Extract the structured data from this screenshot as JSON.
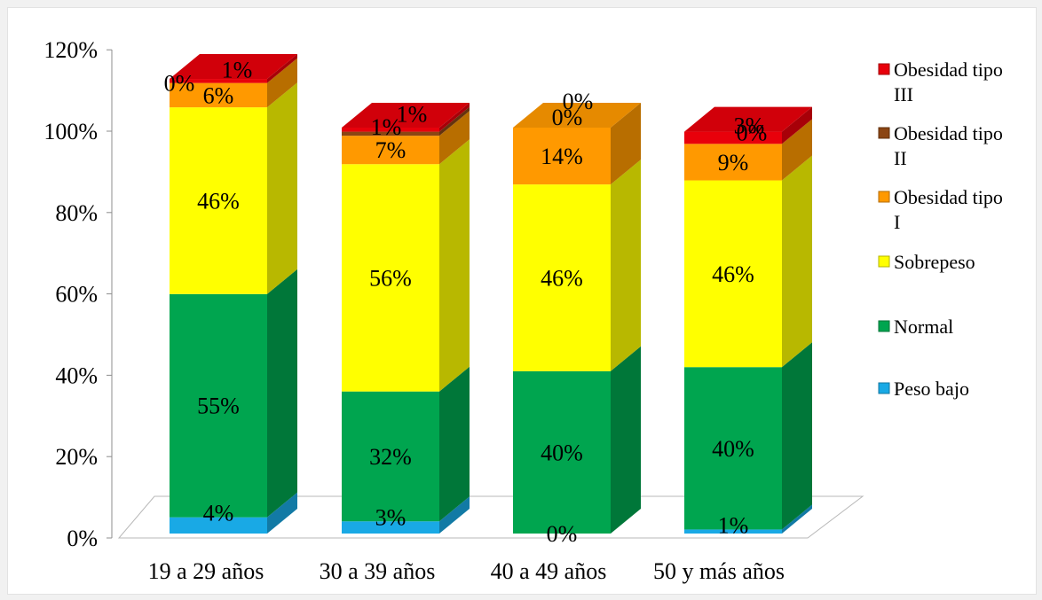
{
  "chart_data": {
    "type": "bar",
    "stacked": true,
    "three_d": true,
    "categories": [
      "19 a 29 años",
      "30 a 39 años",
      "40 a 49 años",
      "50 y más años"
    ],
    "ylim": [
      0,
      120
    ],
    "yticks": [
      "0%",
      "20%",
      "40%",
      "60%",
      "80%",
      "100%",
      "120%"
    ],
    "legend_position": "right",
    "series": [
      {
        "name": "Peso bajo",
        "color": "#19a9e5",
        "values": [
          4,
          3,
          0,
          1
        ],
        "labels": [
          "4%",
          "3%",
          "0%",
          "1%"
        ]
      },
      {
        "name": "Normal",
        "color": "#00a54f",
        "values": [
          55,
          32,
          40,
          40
        ],
        "labels": [
          "55%",
          "32%",
          "40%",
          "40%"
        ]
      },
      {
        "name": "Sobrepeso",
        "color": "#ffff00",
        "values": [
          46,
          56,
          46,
          46
        ],
        "labels": [
          "46%",
          "56%",
          "46%",
          "46%"
        ]
      },
      {
        "name": "Obesidad tipo I",
        "color": "#ff9900",
        "values": [
          6,
          7,
          14,
          9
        ],
        "labels": [
          "6%",
          "7%",
          "14%",
          "9%"
        ]
      },
      {
        "name": "Obesidad tipo II",
        "color": "#8b4513",
        "values": [
          0,
          1,
          0,
          0
        ],
        "labels": [
          "0%",
          "1%",
          "0%",
          "0%"
        ]
      },
      {
        "name": "Obesidad tipo III",
        "color": "#e8000b",
        "values": [
          1,
          1,
          0,
          3
        ],
        "labels": [
          "1%",
          "1%",
          "0%",
          "3%"
        ]
      }
    ],
    "legend": [
      {
        "series": 5,
        "lines": [
          "Obesidad tipo",
          "III"
        ]
      },
      {
        "series": 4,
        "lines": [
          "Obesidad tipo",
          "II"
        ]
      },
      {
        "series": 3,
        "lines": [
          "Obesidad tipo",
          "I"
        ]
      },
      {
        "series": 2,
        "lines": [
          "Sobrepeso"
        ]
      },
      {
        "series": 1,
        "lines": [
          "Normal"
        ]
      },
      {
        "series": 0,
        "lines": [
          "Peso bajo"
        ]
      }
    ]
  }
}
